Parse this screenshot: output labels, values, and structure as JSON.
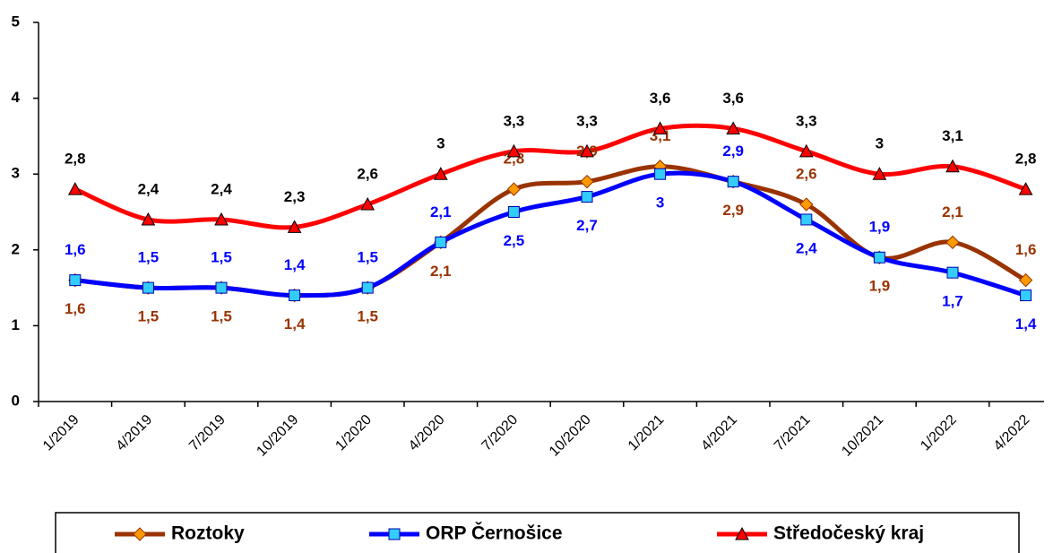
{
  "chart_data": {
    "type": "line",
    "categories": [
      "1/2019",
      "4/2019",
      "7/2019",
      "10/2019",
      "1/2020",
      "4/2020",
      "7/2020",
      "10/2020",
      "1/2021",
      "4/2021",
      "7/2021",
      "10/2021",
      "1/2022",
      "4/2022"
    ],
    "series": [
      {
        "name": "Roztoky",
        "color": "#993300",
        "marker_color": "#ff9900",
        "label_color": "#993300",
        "values": [
          1.6,
          1.5,
          1.5,
          1.4,
          1.5,
          2.1,
          2.8,
          2.9,
          3.1,
          2.9,
          2.6,
          1.9,
          2.1,
          1.6
        ],
        "value_labels": [
          "1,6",
          "1,5",
          "1,5",
          "1,4",
          "1,5",
          "2,1",
          "2,8",
          "2,9",
          "3,1",
          "2,9",
          "2,6",
          "1,9",
          "2,1",
          "1,6"
        ]
      },
      {
        "name": "ORP Černošice",
        "color": "#0000ff",
        "marker_color": "#33ccff",
        "label_color": "#0000ff",
        "values": [
          1.6,
          1.5,
          1.5,
          1.4,
          1.5,
          2.1,
          2.5,
          2.7,
          3,
          2.9,
          2.4,
          1.9,
          1.7,
          1.4
        ],
        "value_labels": [
          "1,6",
          "1,5",
          "1,5",
          "1,4",
          "1,5",
          "2,1",
          "2,5",
          "2,7",
          "3",
          "2,9",
          "2,4",
          "1,9",
          "1,7",
          "1,4"
        ]
      },
      {
        "name": "Středočeský kraj",
        "color": "#ff0000",
        "marker_color": "#ff0000",
        "label_color": "#000000",
        "values": [
          2.8,
          2.4,
          2.4,
          2.3,
          2.6,
          3,
          3.3,
          3.3,
          3.6,
          3.6,
          3.3,
          3,
          3.1,
          2.8
        ],
        "value_labels": [
          "2,8",
          "2,4",
          "2,4",
          "2,3",
          "2,6",
          "3",
          "3,3",
          "3,3",
          "3,6",
          "3,6",
          "3,3",
          "3",
          "3,1",
          "2,8"
        ]
      }
    ],
    "ylim": [
      0,
      5
    ],
    "yticks": [
      0,
      1,
      2,
      3,
      4,
      5
    ],
    "grid": false,
    "legend": "bottom"
  }
}
